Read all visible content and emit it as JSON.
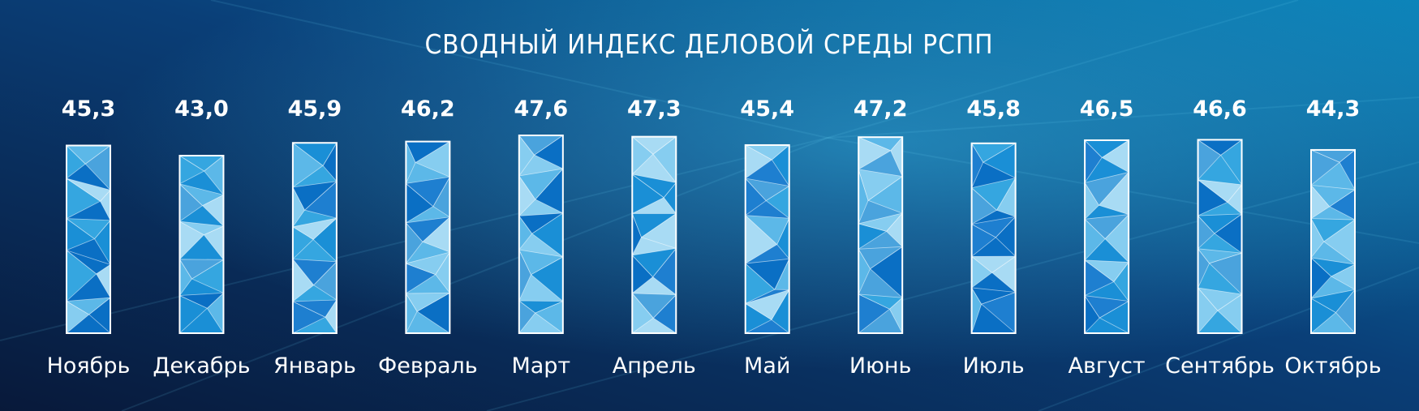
{
  "chart_data": {
    "type": "bar",
    "title": "СВОДНЫЙ ИНДЕКС ДЕЛОВОЙ СРЕДЫ РСПП",
    "categories": [
      "Ноябрь",
      "Декабрь",
      "Январь",
      "Февраль",
      "Март",
      "Апрель",
      "Май",
      "Июнь",
      "Июль",
      "Август",
      "Сентябрь",
      "Октябрь"
    ],
    "value_labels": [
      "45,3",
      "43,0",
      "45,9",
      "46,2",
      "47,6",
      "47,3",
      "45,4",
      "47,2",
      "45,8",
      "46,5",
      "46,6",
      "44,3"
    ],
    "values": [
      45.3,
      43.0,
      45.9,
      46.2,
      47.6,
      47.3,
      45.4,
      47.2,
      45.8,
      46.5,
      46.6,
      44.3
    ],
    "xlabel": "",
    "ylabel": "",
    "grid": false,
    "legend": "none"
  },
  "colors": {
    "background_dark": "#08193a",
    "background_light": "#0b82b8",
    "text": "#ffffff",
    "bar_stroke": "#ffffff",
    "facet_palette": [
      "#0a6fc4",
      "#1a8fd6",
      "#35a6e0",
      "#5cb8e8",
      "#86cdf0",
      "#a8dbf4",
      "#1e7fd0",
      "#4aa3dd"
    ]
  }
}
